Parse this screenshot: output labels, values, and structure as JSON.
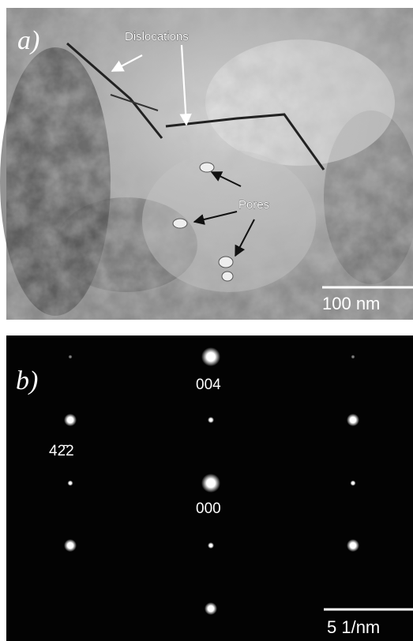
{
  "panel_a": {
    "label": "a)",
    "annotations": [
      "Dislocations",
      "Pores"
    ],
    "scale_bar": "100 nm"
  },
  "panel_b": {
    "label": "b)",
    "spot_labels": [
      "004",
      "42̄2",
      "000"
    ],
    "scale_bar": "5 1/nm"
  }
}
